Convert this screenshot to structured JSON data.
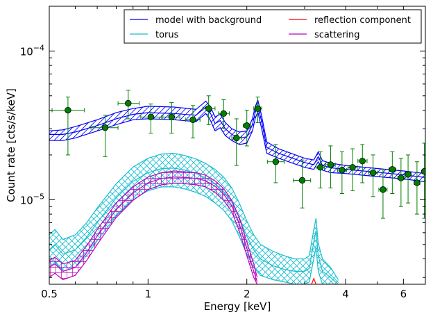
{
  "chart_data": {
    "type": "scatter",
    "title": "",
    "xlabel": "Energy [keV]",
    "ylabel": "Count rate [cts/s/keV]",
    "xscale": "log",
    "yscale": "log",
    "xlim": [
      0.5,
      7.0
    ],
    "ylim": [
      2.7e-06,
      0.0002
    ],
    "grid": false,
    "legend_position": "top-right",
    "x_ticks": [
      {
        "value": 0.5,
        "label": "0.5"
      },
      {
        "value": 1,
        "label": "1"
      },
      {
        "value": 2,
        "label": "2"
      },
      {
        "value": 4,
        "label": "4"
      },
      {
        "value": 6,
        "label": "6"
      }
    ],
    "y_ticks": [
      {
        "value": 0.0001,
        "base": "10",
        "exp": "−4"
      },
      {
        "value": 1e-05,
        "base": "10",
        "exp": "−5"
      }
    ],
    "legend": [
      {
        "label": "model with background",
        "color": "#0000ff"
      },
      {
        "label": "reflection component",
        "color": "#ff0000"
      },
      {
        "label": "torus",
        "color": "#17becf"
      },
      {
        "label": "scattering",
        "color": "#bf00bf"
      }
    ],
    "colors": {
      "data_points": "#008000",
      "errorbars": "#008000"
    },
    "data_points": [
      {
        "x": 0.57,
        "y": 4e-05,
        "xerr": [
          0.06,
          0.07
        ],
        "yerr": [
          2e-05,
          4.9e-05
        ]
      },
      {
        "x": 0.74,
        "y": 3.05e-05,
        "xerr": [
          0.07,
          0.07
        ],
        "yerr": [
          1.95e-05,
          3.7e-05
        ]
      },
      {
        "x": 0.87,
        "y": 4.45e-05,
        "xerr": [
          0.06,
          0.07
        ],
        "yerr": [
          3.5e-05,
          5.45e-05
        ]
      },
      {
        "x": 1.02,
        "y": 3.6e-05,
        "xerr": [
          0.07,
          0.08
        ],
        "yerr": [
          2.8e-05,
          4.4e-05
        ]
      },
      {
        "x": 1.18,
        "y": 3.6e-05,
        "xerr": [
          0.07,
          0.07
        ],
        "yerr": [
          2.8e-05,
          4.5e-05
        ]
      },
      {
        "x": 1.37,
        "y": 3.45e-05,
        "xerr": [
          0.07,
          0.07
        ],
        "yerr": [
          2.6e-05,
          4.3e-05
        ]
      },
      {
        "x": 1.53,
        "y": 4.1e-05,
        "xerr": [
          0.06,
          0.07
        ],
        "yerr": [
          3.2e-05,
          5e-05
        ]
      },
      {
        "x": 1.7,
        "y": 3.8e-05,
        "xerr": [
          0.06,
          0.07
        ],
        "yerr": [
          3e-05,
          4.7e-05
        ]
      },
      {
        "x": 1.86,
        "y": 2.6e-05,
        "xerr": [
          0.06,
          0.07
        ],
        "yerr": [
          1.7e-05,
          3.5e-05
        ]
      },
      {
        "x": 2.0,
        "y": 3.15e-05,
        "xerr": [
          0.05,
          0.05
        ],
        "yerr": [
          2.3e-05,
          4e-05
        ]
      },
      {
        "x": 2.16,
        "y": 4.1e-05,
        "xerr": [
          0.06,
          0.06
        ],
        "yerr": [
          3.3e-05,
          4.9e-05
        ]
      },
      {
        "x": 2.45,
        "y": 1.8e-05,
        "xerr": [
          0.14,
          0.15
        ],
        "yerr": [
          1.3e-05,
          2.35e-05
        ]
      },
      {
        "x": 2.95,
        "y": 1.35e-05,
        "xerr": [
          0.18,
          0.18
        ],
        "yerr": [
          8.8e-06,
          1.85e-05
        ]
      },
      {
        "x": 3.35,
        "y": 1.65e-05,
        "xerr": [
          0.1,
          0.1
        ],
        "yerr": [
          1.2e-05,
          2.1e-05
        ]
      },
      {
        "x": 3.6,
        "y": 1.72e-05,
        "xerr": [
          0.12,
          0.12
        ],
        "yerr": [
          1.2e-05,
          2.3e-05
        ]
      },
      {
        "x": 3.9,
        "y": 1.58e-05,
        "xerr": [
          0.12,
          0.13
        ],
        "yerr": [
          1.1e-05,
          2.1e-05
        ]
      },
      {
        "x": 4.2,
        "y": 1.65e-05,
        "xerr": [
          0.13,
          0.14
        ],
        "yerr": [
          1.15e-05,
          2.2e-05
        ]
      },
      {
        "x": 4.5,
        "y": 1.82e-05,
        "xerr": [
          0.14,
          0.15
        ],
        "yerr": [
          1.3e-05,
          2.35e-05
        ]
      },
      {
        "x": 4.85,
        "y": 1.52e-05,
        "xerr": [
          0.15,
          0.16
        ],
        "yerr": [
          1.05e-05,
          2e-05
        ]
      },
      {
        "x": 5.2,
        "y": 1.17e-05,
        "xerr": [
          0.15,
          0.15
        ],
        "yerr": [
          7.5e-06,
          1.6e-05
        ]
      },
      {
        "x": 5.55,
        "y": 1.6e-05,
        "xerr": [
          0.13,
          0.14
        ],
        "yerr": [
          1.1e-05,
          2.1e-05
        ]
      },
      {
        "x": 5.9,
        "y": 1.4e-05,
        "xerr": [
          0.13,
          0.13
        ],
        "yerr": [
          9e-06,
          1.9e-05
        ]
      },
      {
        "x": 6.2,
        "y": 1.48e-05,
        "xerr": [
          0.13,
          0.14
        ],
        "yerr": [
          9.5e-06,
          2e-05
        ]
      },
      {
        "x": 6.6,
        "y": 1.3e-05,
        "xerr": [
          0.13,
          0.14
        ],
        "yerr": [
          8e-06,
          1.8e-05
        ]
      },
      {
        "x": 6.95,
        "y": 1.55e-05,
        "xerr": [
          0.1,
          0.05
        ],
        "yerr": [
          7.5e-06,
          2.4e-05
        ]
      }
    ],
    "model_with_background": {
      "x": [
        0.5,
        0.55,
        0.6,
        0.7,
        0.8,
        0.9,
        1.0,
        1.2,
        1.4,
        1.5,
        1.55,
        1.6,
        1.66,
        1.72,
        1.8,
        1.9,
        2.0,
        2.08,
        2.12,
        2.16,
        2.22,
        2.3,
        2.5,
        3.0,
        3.2,
        3.3,
        3.4,
        3.6,
        4.0,
        5.0,
        6.0,
        7.0
      ],
      "y_low": [
        2.5e-05,
        2.5e-05,
        2.6e-05,
        2.9e-05,
        3.2e-05,
        3.45e-05,
        3.5e-05,
        3.45e-05,
        3.35e-05,
        3.8e-05,
        3.4e-05,
        2.9e-05,
        3.05e-05,
        2.7e-05,
        2.5e-05,
        2.35e-05,
        2.4e-05,
        2.9e-05,
        3.5e-05,
        3.9e-05,
        3e-05,
        2.05e-05,
        1.9e-05,
        1.65e-05,
        1.6e-05,
        1.8e-05,
        1.58e-05,
        1.52e-05,
        1.5e-05,
        1.43e-05,
        1.38e-05,
        1.32e-05
      ],
      "y_mid": [
        2.75e-05,
        2.75e-05,
        2.85e-05,
        3.15e-05,
        3.5e-05,
        3.75e-05,
        3.85e-05,
        3.8e-05,
        3.7e-05,
        4.2e-05,
        3.8e-05,
        3.25e-05,
        3.4e-05,
        3e-05,
        2.75e-05,
        2.6e-05,
        2.65e-05,
        3.2e-05,
        3.85e-05,
        4.3e-05,
        3.35e-05,
        2.25e-05,
        2.05e-05,
        1.78e-05,
        1.72e-05,
        1.95e-05,
        1.7e-05,
        1.64e-05,
        1.6e-05,
        1.53e-05,
        1.47e-05,
        1.41e-05
      ],
      "y_high": [
        2.9e-05,
        2.95e-05,
        3.1e-05,
        3.45e-05,
        3.85e-05,
        4.1e-05,
        4.25e-05,
        4.2e-05,
        4.05e-05,
        4.6e-05,
        4.2e-05,
        3.6e-05,
        3.75e-05,
        3.3e-05,
        3e-05,
        2.85e-05,
        2.9e-05,
        3.5e-05,
        4.2e-05,
        4.7e-05,
        3.65e-05,
        2.45e-05,
        2.2e-05,
        1.9e-05,
        1.85e-05,
        2.1e-05,
        1.83e-05,
        1.76e-05,
        1.7e-05,
        1.62e-05,
        1.56e-05,
        1.5e-05
      ]
    },
    "torus": {
      "x": [
        0.5,
        0.52,
        0.55,
        0.6,
        0.65,
        0.7,
        0.8,
        0.9,
        1.0,
        1.1,
        1.2,
        1.3,
        1.4,
        1.5,
        1.6,
        1.7,
        1.8,
        1.9,
        2.0,
        2.1,
        2.2,
        2.4,
        2.6,
        2.8,
        3.0,
        3.1,
        3.2,
        3.25,
        3.3,
        3.4,
        3.6,
        3.8
      ],
      "y_low": [
        3.5e-06,
        3.8e-06,
        3.3e-06,
        3.5e-06,
        4.2e-06,
        5.3e-06,
        7.8e-06,
        1e-05,
        1.15e-05,
        1.22e-05,
        1.22e-05,
        1.18e-05,
        1.12e-05,
        1.05e-05,
        9.5e-06,
        8.5e-06,
        7.2e-06,
        5.6e-06,
        4.3e-06,
        3.5e-06,
        3.1e-06,
        2.9e-06,
        2.8e-06,
        2.7e-06,
        2.7e-06,
        2.8e-06,
        4e-06,
        4.8e-06,
        3.3e-06,
        2.7e-06,
        2.7e-06,
        2.7e-06
      ],
      "y_mid": [
        4.6e-06,
        5e-06,
        4.3e-06,
        4.6e-06,
        5.6e-06,
        7e-06,
        1.03e-05,
        1.33e-05,
        1.52e-05,
        1.62e-05,
        1.63e-05,
        1.58e-05,
        1.5e-05,
        1.4e-05,
        1.28e-05,
        1.14e-05,
        9.6e-06,
        7.5e-06,
        5.7e-06,
        4.6e-06,
        4e-06,
        3.6e-06,
        3.4e-06,
        3.3e-06,
        3.3e-06,
        3.45e-06,
        5.2e-06,
        6.2e-06,
        4.2e-06,
        3.3e-06,
        3e-06,
        2.7e-06
      ],
      "y_high": [
        5.8e-06,
        6.3e-06,
        5.4e-06,
        5.8e-06,
        7e-06,
        8.8e-06,
        1.28e-05,
        1.66e-05,
        1.9e-05,
        2.03e-05,
        2.05e-05,
        1.98e-05,
        1.88e-05,
        1.75e-05,
        1.6e-05,
        1.42e-05,
        1.2e-05,
        9.4e-06,
        7.2e-06,
        5.8e-06,
        5e-06,
        4.5e-06,
        4.2e-06,
        4e-06,
        4e-06,
        4.2e-06,
        6.3e-06,
        7.5e-06,
        5.1e-06,
        4e-06,
        3.5e-06,
        2.9e-06
      ]
    },
    "scattering": {
      "x": [
        0.5,
        0.52,
        0.55,
        0.6,
        0.65,
        0.7,
        0.8,
        0.9,
        1.0,
        1.1,
        1.2,
        1.3,
        1.4,
        1.5,
        1.6,
        1.7,
        1.8,
        1.9,
        2.0,
        2.1,
        2.15
      ],
      "y_low": [
        3e-06,
        3.2e-06,
        2.9e-06,
        3.1e-06,
        3.9e-06,
        5e-06,
        7.6e-06,
        9.9e-06,
        1.17e-05,
        1.26e-05,
        1.29e-05,
        1.28e-05,
        1.26e-05,
        1.22e-05,
        1.12e-05,
        9.9e-06,
        8.3e-06,
        6.1e-06,
        4.2e-06,
        3e-06,
        2.7e-06
      ],
      "y_mid": [
        3.5e-06,
        3.7e-06,
        3.3e-06,
        3.5e-06,
        4.4e-06,
        5.7e-06,
        8.6e-06,
        1.11e-05,
        1.3e-05,
        1.39e-05,
        1.42e-05,
        1.41e-05,
        1.39e-05,
        1.34e-05,
        1.23e-05,
        1.09e-05,
        9.1e-06,
        6.8e-06,
        4.7e-06,
        3.3e-06,
        2.8e-06
      ],
      "y_high": [
        3.9e-06,
        4.1e-06,
        3.7e-06,
        3.9e-06,
        4.9e-06,
        6.3e-06,
        9.5e-06,
        1.22e-05,
        1.42e-05,
        1.52e-05,
        1.56e-05,
        1.54e-05,
        1.52e-05,
        1.46e-05,
        1.34e-05,
        1.19e-05,
        9.9e-06,
        7.5e-06,
        5.2e-06,
        3.7e-06,
        3e-06
      ]
    },
    "reflection_component": {
      "x": [
        3.15,
        3.2,
        3.25
      ],
      "y": [
        2.7e-06,
        2.95e-06,
        2.7e-06
      ]
    }
  }
}
